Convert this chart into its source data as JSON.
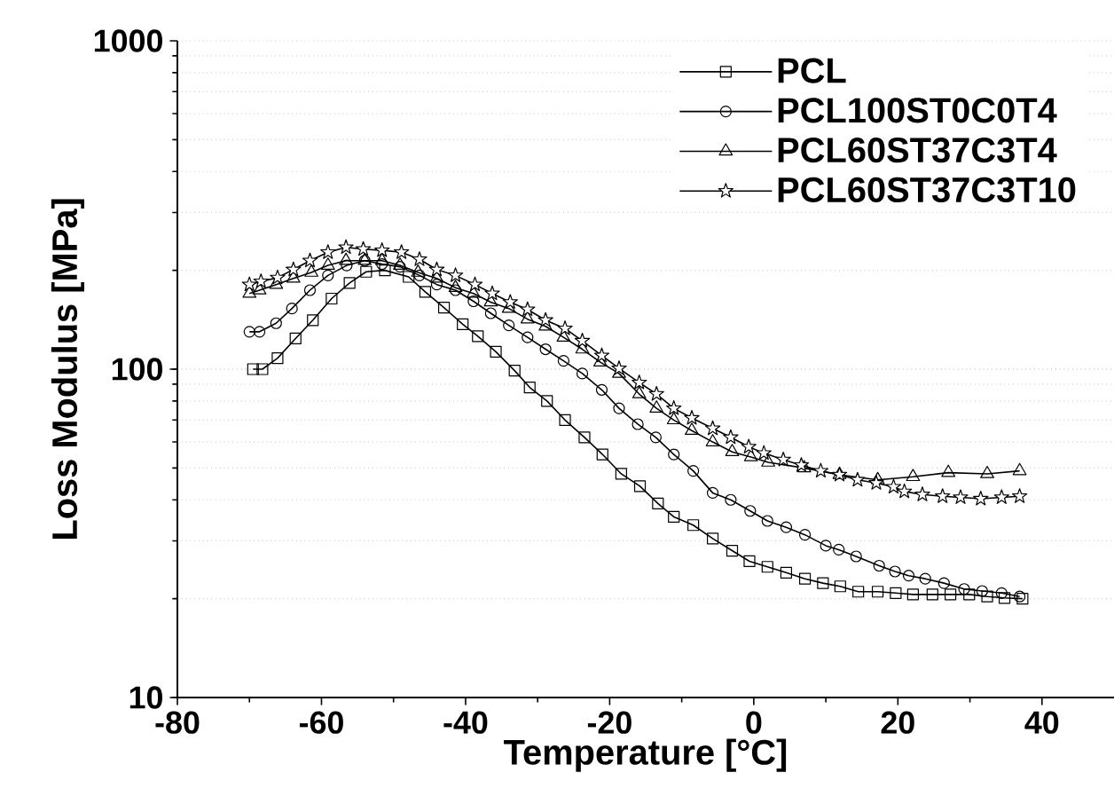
{
  "chart_data": {
    "type": "line",
    "xlabel": "Temperature [°C]",
    "ylabel": "Loss Modulus [MPa]",
    "xlim": [
      -80,
      50
    ],
    "xticks": [
      -80,
      -60,
      -40,
      -20,
      0,
      20,
      40
    ],
    "ylim": [
      10,
      1000
    ],
    "yticks": [
      10,
      100,
      1000
    ],
    "log": "y",
    "grid": "y",
    "legend": "top right",
    "line_style": "solid",
    "series": [
      {
        "name": "PCL",
        "color": "#000000",
        "marker": "square",
        "x": [
          -69.5,
          -68.2,
          -66.1,
          -63.6,
          -61.2,
          -58.6,
          -56.1,
          -53.8,
          -51.2,
          -47.9,
          -45.6,
          -43.0,
          -40.4,
          -38.3,
          -35.8,
          -33.2,
          -31.1,
          -28.7,
          -26.2,
          -23.5,
          -21.0,
          -18.4,
          -15.8,
          -13.3,
          -11.1,
          -8.4,
          -5.7,
          -3.0,
          -0.6,
          1.9,
          4.5,
          7.1,
          9.6,
          12.0,
          14.5,
          17.2,
          19.7,
          22.1,
          24.8,
          27.3,
          29.9,
          32.4,
          34.8,
          37.3
        ],
        "values": [
          100,
          100,
          108,
          124,
          141,
          164,
          183,
          198,
          200,
          191,
          172,
          154,
          137,
          126,
          113,
          99,
          88,
          80,
          70,
          62,
          55,
          48,
          44,
          39,
          35.5,
          33.5,
          30.5,
          28,
          26,
          25,
          24,
          23,
          22.3,
          21.8,
          21,
          21,
          20.8,
          20.6,
          20.6,
          20.6,
          20.6,
          20.3,
          20.1,
          20
        ]
      },
      {
        "name": "PCL100ST0C0T4",
        "color": "#000000",
        "marker": "circle",
        "x": [
          -70.0,
          -68.6,
          -66.3,
          -64.1,
          -61.6,
          -59.1,
          -56.5,
          -54.0,
          -51.6,
          -49.1,
          -46.4,
          -44.0,
          -41.4,
          -38.9,
          -36.5,
          -34.0,
          -31.4,
          -28.9,
          -26.4,
          -23.8,
          -21.1,
          -18.7,
          -16.1,
          -13.6,
          -11.1,
          -8.4,
          -5.7,
          -3.2,
          -0.5,
          1.9,
          4.5,
          7.1,
          10.0,
          11.8,
          14.2,
          17.4,
          19.6,
          21.5,
          23.8,
          26.4,
          29.2,
          31.7,
          34.4,
          36.9
        ],
        "values": [
          130,
          130,
          138,
          153,
          174,
          193,
          207,
          214,
          209,
          205,
          193,
          181,
          174,
          161,
          148,
          136,
          125,
          115,
          106,
          97,
          86.5,
          76,
          68,
          62,
          55,
          49,
          42,
          40,
          37,
          34.5,
          33,
          31.3,
          29,
          28.2,
          26.9,
          25.2,
          24.2,
          23.5,
          23,
          22.3,
          21.4,
          21.1,
          20.8,
          20.3
        ]
      },
      {
        "name": "PCL60ST37C3T4",
        "color": "#000000",
        "marker": "triangle",
        "x": [
          -70.0,
          -68.6,
          -66.3,
          -63.9,
          -61.4,
          -59.1,
          -56.6,
          -54.0,
          -51.6,
          -49.1,
          -46.6,
          -44.0,
          -41.4,
          -38.9,
          -36.5,
          -34.0,
          -31.4,
          -28.9,
          -26.4,
          -23.8,
          -21.3,
          -18.7,
          -15.9,
          -13.5,
          -11.1,
          -8.6,
          -5.7,
          -3.0,
          -0.4,
          2.0,
          7.0,
          11.9,
          17.2,
          22.1,
          27.0,
          32.4,
          36.9
        ],
        "values": [
          170,
          174,
          181,
          189,
          197,
          207,
          214,
          214,
          214,
          207,
          197,
          189,
          177,
          170,
          160,
          153,
          142,
          135,
          125,
          115,
          105,
          97,
          84,
          76,
          70,
          65,
          60,
          56,
          54,
          52,
          50,
          47.7,
          46,
          47,
          48.4,
          48,
          49
        ]
      },
      {
        "name": "PCL60ST37C3T10",
        "color": "#000000",
        "marker": "star",
        "x": [
          -70.0,
          -68.4,
          -66.1,
          -63.9,
          -61.6,
          -59.1,
          -56.6,
          -54.2,
          -51.6,
          -48.9,
          -46.4,
          -44.0,
          -41.4,
          -38.7,
          -36.3,
          -33.8,
          -31.4,
          -28.9,
          -26.2,
          -23.8,
          -21.1,
          -18.7,
          -15.9,
          -13.5,
          -11.1,
          -8.6,
          -5.7,
          -3.2,
          -0.7,
          1.4,
          4.1,
          6.6,
          9.3,
          11.9,
          14.4,
          17.0,
          19.4,
          20.9,
          23.4,
          26.2,
          28.7,
          31.5,
          34.4,
          36.9
        ],
        "values": [
          181,
          185,
          190,
          201,
          214,
          227,
          235,
          232,
          230,
          227,
          216,
          201,
          193,
          181,
          170,
          160,
          152,
          141,
          133,
          122,
          110,
          100.5,
          91,
          84,
          76,
          71,
          66,
          62,
          58,
          55.5,
          53,
          51,
          49,
          47.7,
          46,
          45,
          43.8,
          42.4,
          41.5,
          41,
          40.7,
          40.3,
          40.7,
          41
        ]
      }
    ]
  }
}
